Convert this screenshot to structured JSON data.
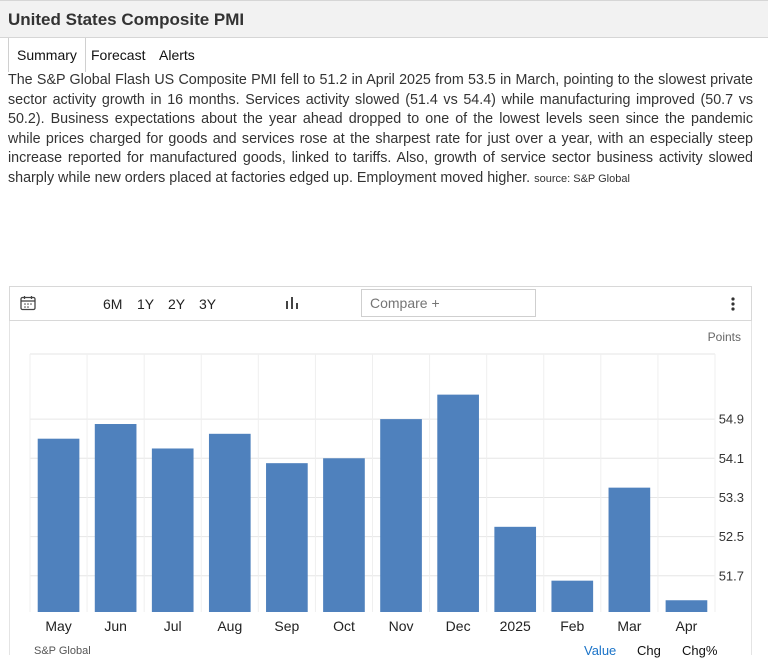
{
  "page": {
    "title": "United States Composite PMI",
    "tabs": [
      {
        "label": "Summary",
        "active": true
      },
      {
        "label": "Forecast",
        "active": false
      },
      {
        "label": "Alerts",
        "active": false
      }
    ],
    "description": "The S&P Global Flash US Composite PMI fell to 51.2 in April 2025 from 53.5 in March, pointing to the slowest private sector activity growth in 16 months. Services activity slowed (51.4 vs 54.4) while manufacturing improved (50.7 vs 50.2). Business expectations about the year ahead dropped to one of the lowest levels seen since the pandemic while prices charged for goods and services rose at the sharpest rate for just over a year, with an especially steep increase reported for manufactured goods, linked to tariffs. Also, growth of service sector business activity slowed sharply while new orders placed at factories edged up. Employment moved higher.",
    "source_label": "source: S&P Global"
  },
  "toolbar": {
    "ranges": [
      "6M",
      "1Y",
      "2Y",
      "3Y"
    ],
    "compare_placeholder": "Compare +",
    "icons": [
      "calendar-icon",
      "bar-chart-icon",
      "more-vertical-icon"
    ]
  },
  "footer": {
    "source": "S&P Global",
    "tabs": [
      "Value",
      "Chg",
      "Chg%"
    ],
    "active_tab": "Value"
  },
  "colors": {
    "bar": "#4f81bd",
    "accent": "#1a73c8"
  },
  "chart_data": {
    "type": "bar",
    "ylabel": "Points",
    "categories": [
      "May",
      "Jun",
      "Jul",
      "Aug",
      "Sep",
      "Oct",
      "Nov",
      "Dec",
      "2025",
      "Feb",
      "Mar",
      "Apr"
    ],
    "values": [
      54.5,
      54.8,
      54.3,
      54.6,
      54.0,
      54.1,
      54.9,
      55.4,
      52.7,
      51.6,
      53.5,
      51.2
    ],
    "yticks": [
      51.7,
      52.5,
      53.3,
      54.1,
      54.9
    ],
    "ylim": [
      50.96,
      56.23
    ],
    "grid": true,
    "y_axis_side": "right"
  }
}
